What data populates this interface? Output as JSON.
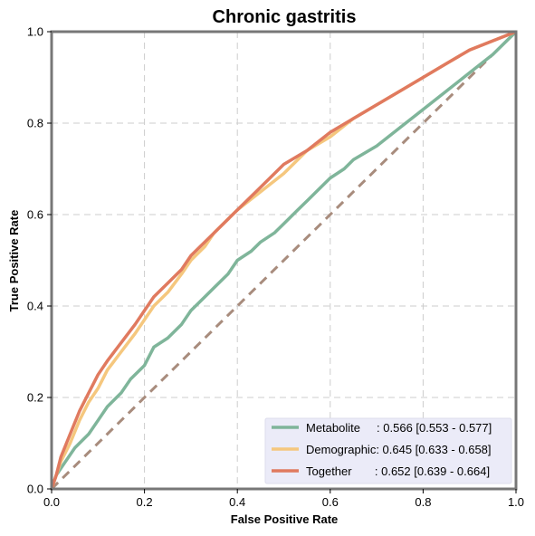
{
  "chart_data": {
    "type": "line",
    "title": "Chronic gastritis",
    "xlabel": "False Positive Rate",
    "ylabel": "True Positive Rate",
    "xlim": [
      0,
      1
    ],
    "ylim": [
      0,
      1
    ],
    "xticks": [
      "0.0",
      "0.2",
      "0.4",
      "0.6",
      "0.8",
      "1.0"
    ],
    "yticks": [
      "0.0",
      "0.2",
      "0.4",
      "0.6",
      "0.8",
      "1.0"
    ],
    "grid": true,
    "legend_position": "bottom-right",
    "series": [
      {
        "name": "Metabolite",
        "label": "Metabolite     : 0.566 [0.553 - 0.577]",
        "color": "#7fb59a",
        "x": [
          0,
          0.01,
          0.03,
          0.05,
          0.08,
          0.1,
          0.12,
          0.15,
          0.17,
          0.2,
          0.22,
          0.25,
          0.28,
          0.3,
          0.33,
          0.35,
          0.38,
          0.4,
          0.43,
          0.45,
          0.48,
          0.5,
          0.53,
          0.55,
          0.58,
          0.6,
          0.63,
          0.65,
          0.7,
          0.75,
          0.8,
          0.85,
          0.9,
          0.95,
          1.0
        ],
        "y": [
          0,
          0.03,
          0.06,
          0.09,
          0.12,
          0.15,
          0.18,
          0.21,
          0.24,
          0.27,
          0.31,
          0.33,
          0.36,
          0.39,
          0.42,
          0.44,
          0.47,
          0.5,
          0.52,
          0.54,
          0.56,
          0.58,
          0.61,
          0.63,
          0.66,
          0.68,
          0.7,
          0.72,
          0.75,
          0.79,
          0.83,
          0.87,
          0.91,
          0.95,
          1.0
        ]
      },
      {
        "name": "Demographic",
        "label": "Demographic: 0.645 [0.633 - 0.658]",
        "color": "#f5c77e",
        "x": [
          0,
          0.01,
          0.02,
          0.04,
          0.06,
          0.08,
          0.1,
          0.12,
          0.15,
          0.18,
          0.2,
          0.22,
          0.25,
          0.28,
          0.3,
          0.33,
          0.35,
          0.4,
          0.45,
          0.5,
          0.55,
          0.6,
          0.65,
          0.7,
          0.75,
          0.8,
          0.85,
          0.9,
          0.95,
          1.0
        ],
        "y": [
          0,
          0.03,
          0.06,
          0.1,
          0.15,
          0.19,
          0.22,
          0.26,
          0.3,
          0.34,
          0.37,
          0.4,
          0.43,
          0.47,
          0.5,
          0.53,
          0.56,
          0.61,
          0.65,
          0.69,
          0.74,
          0.77,
          0.81,
          0.84,
          0.87,
          0.9,
          0.93,
          0.96,
          0.98,
          1.0
        ]
      },
      {
        "name": "Together",
        "label": "Together       : 0.652 [0.639 - 0.664]",
        "color": "#e07a5f",
        "x": [
          0,
          0.01,
          0.02,
          0.04,
          0.06,
          0.08,
          0.1,
          0.12,
          0.15,
          0.18,
          0.2,
          0.22,
          0.25,
          0.28,
          0.3,
          0.33,
          0.35,
          0.4,
          0.45,
          0.5,
          0.55,
          0.6,
          0.65,
          0.7,
          0.75,
          0.8,
          0.85,
          0.9,
          0.95,
          1.0
        ],
        "y": [
          0,
          0.03,
          0.07,
          0.12,
          0.17,
          0.21,
          0.25,
          0.28,
          0.32,
          0.36,
          0.39,
          0.42,
          0.45,
          0.48,
          0.51,
          0.54,
          0.56,
          0.61,
          0.66,
          0.71,
          0.74,
          0.78,
          0.81,
          0.84,
          0.87,
          0.9,
          0.93,
          0.96,
          0.98,
          1.0
        ]
      }
    ],
    "reference_line": {
      "x": [
        0,
        1
      ],
      "y": [
        0,
        1
      ],
      "color": "#a88c7d",
      "style": "dashed"
    }
  }
}
